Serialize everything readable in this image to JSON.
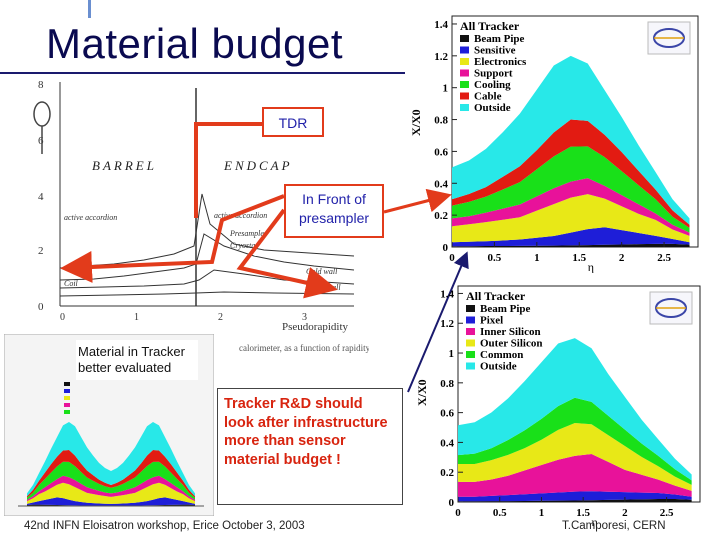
{
  "slide": {
    "title": "Material budget",
    "tdr_label": "TDR",
    "front_label": "In Front of presampler",
    "tracker_note": "Material in Tracker better evaluated",
    "rnd_note": "Tracker R&D should look after infrastructure more than sensor material budget !",
    "footer_left": "42nd INFN Eloisatron workshop, Erice October 3, 2003",
    "footer_right": "T.Camporesi, CERN"
  },
  "tdr_plot": {
    "region_left": "BARREL",
    "region_right": "ENDCAP",
    "x_label": "Pseudorapidity",
    "y_ticks": [
      "8",
      "6",
      "4",
      "2",
      "0"
    ],
    "x_ticks": [
      "0",
      "1",
      "2",
      "3"
    ],
    "curve_labels": [
      "active accordion",
      "active accordion",
      "Presampler",
      "Cryostat",
      "Coil",
      "Cold wall",
      "Warm wall"
    ],
    "caption": "calorimeter, as a function of rapidity"
  },
  "colors": {
    "beam_pipe": "#111111",
    "sensitive": "#1e1ed8",
    "electronics": "#e8e817",
    "support": "#e8129a",
    "cooling": "#19e019",
    "cable": "#e21b12",
    "outside": "#28e8e8",
    "arrow": "#e23b1b",
    "title": "#0a0a50"
  },
  "chart_data": [
    {
      "type": "area",
      "title": "All Tracker",
      "xlabel": "η",
      "ylabel": "X/X0",
      "xlim": [
        0,
        2.9
      ],
      "ylim": [
        0,
        1.45
      ],
      "x_ticks": [
        "0",
        "0.5",
        "1",
        "1.5",
        "2",
        "2.5"
      ],
      "y_ticks": [
        "0",
        "0.2",
        "0.4",
        "0.6",
        "0.8",
        "1",
        "1.2",
        "1.4"
      ],
      "x": [
        0,
        0.2,
        0.4,
        0.6,
        0.8,
        1.0,
        1.2,
        1.4,
        1.6,
        1.8,
        2.0,
        2.2,
        2.4,
        2.6,
        2.8
      ],
      "series": [
        {
          "name": "Beam Pipe",
          "values": [
            0.005,
            0.005,
            0.006,
            0.006,
            0.007,
            0.008,
            0.009,
            0.01,
            0.012,
            0.014,
            0.016,
            0.018,
            0.02,
            0.02,
            0.015
          ]
        },
        {
          "name": "Sensitive",
          "values": [
            0.025,
            0.028,
            0.03,
            0.035,
            0.04,
            0.05,
            0.06,
            0.08,
            0.1,
            0.11,
            0.09,
            0.07,
            0.05,
            0.03,
            0.015
          ]
        },
        {
          "name": "Electronics",
          "values": [
            0.1,
            0.11,
            0.12,
            0.13,
            0.14,
            0.17,
            0.2,
            0.22,
            0.22,
            0.18,
            0.15,
            0.12,
            0.1,
            0.06,
            0.04
          ]
        },
        {
          "name": "Support",
          "values": [
            0.05,
            0.05,
            0.06,
            0.07,
            0.08,
            0.09,
            0.1,
            0.1,
            0.1,
            0.08,
            0.07,
            0.06,
            0.04,
            0.03,
            0.02
          ]
        },
        {
          "name": "Cooling",
          "values": [
            0.08,
            0.09,
            0.1,
            0.12,
            0.14,
            0.17,
            0.2,
            0.22,
            0.2,
            0.18,
            0.15,
            0.12,
            0.09,
            0.05,
            0.03
          ]
        },
        {
          "name": "Cable",
          "values": [
            0.04,
            0.05,
            0.06,
            0.08,
            0.1,
            0.12,
            0.15,
            0.17,
            0.16,
            0.14,
            0.12,
            0.09,
            0.06,
            0.04,
            0.02
          ]
        },
        {
          "name": "Outside",
          "values": [
            0.2,
            0.21,
            0.24,
            0.28,
            0.33,
            0.38,
            0.42,
            0.4,
            0.36,
            0.28,
            0.22,
            0.16,
            0.11,
            0.07,
            0.04
          ]
        }
      ]
    },
    {
      "type": "area",
      "title": "All Tracker",
      "xlabel": "η",
      "ylabel": "X/X0",
      "xlim": [
        0,
        2.9
      ],
      "ylim": [
        0,
        1.45
      ],
      "x_ticks": [
        "0",
        "0.5",
        "1",
        "1.5",
        "2",
        "2.5"
      ],
      "y_ticks": [
        "0",
        "0.2",
        "0.4",
        "0.6",
        "0.8",
        "1",
        "1.2",
        "1.4"
      ],
      "x": [
        0,
        0.2,
        0.4,
        0.6,
        0.8,
        1.0,
        1.2,
        1.4,
        1.6,
        1.8,
        2.0,
        2.2,
        2.4,
        2.6,
        2.8
      ],
      "series": [
        {
          "name": "Beam Pipe",
          "values": [
            0.005,
            0.005,
            0.006,
            0.006,
            0.007,
            0.008,
            0.009,
            0.01,
            0.012,
            0.014,
            0.016,
            0.018,
            0.02,
            0.02,
            0.015
          ]
        },
        {
          "name": "Pixel",
          "values": [
            0.03,
            0.03,
            0.035,
            0.04,
            0.045,
            0.05,
            0.055,
            0.06,
            0.06,
            0.055,
            0.05,
            0.045,
            0.04,
            0.03,
            0.02
          ]
        },
        {
          "name": "Inner Silicon",
          "values": [
            0.1,
            0.1,
            0.11,
            0.13,
            0.16,
            0.19,
            0.22,
            0.24,
            0.25,
            0.2,
            0.15,
            0.12,
            0.09,
            0.06,
            0.04
          ]
        },
        {
          "name": "Outer Silicon",
          "values": [
            0.12,
            0.12,
            0.13,
            0.14,
            0.15,
            0.17,
            0.2,
            0.22,
            0.2,
            0.18,
            0.16,
            0.12,
            0.09,
            0.06,
            0.04
          ]
        },
        {
          "name": "Common",
          "values": [
            0.06,
            0.07,
            0.08,
            0.1,
            0.12,
            0.14,
            0.16,
            0.17,
            0.15,
            0.13,
            0.11,
            0.09,
            0.07,
            0.05,
            0.03
          ]
        },
        {
          "name": "Outside",
          "values": [
            0.2,
            0.21,
            0.24,
            0.28,
            0.33,
            0.38,
            0.42,
            0.4,
            0.36,
            0.28,
            0.22,
            0.16,
            0.11,
            0.07,
            0.04
          ]
        }
      ]
    }
  ]
}
